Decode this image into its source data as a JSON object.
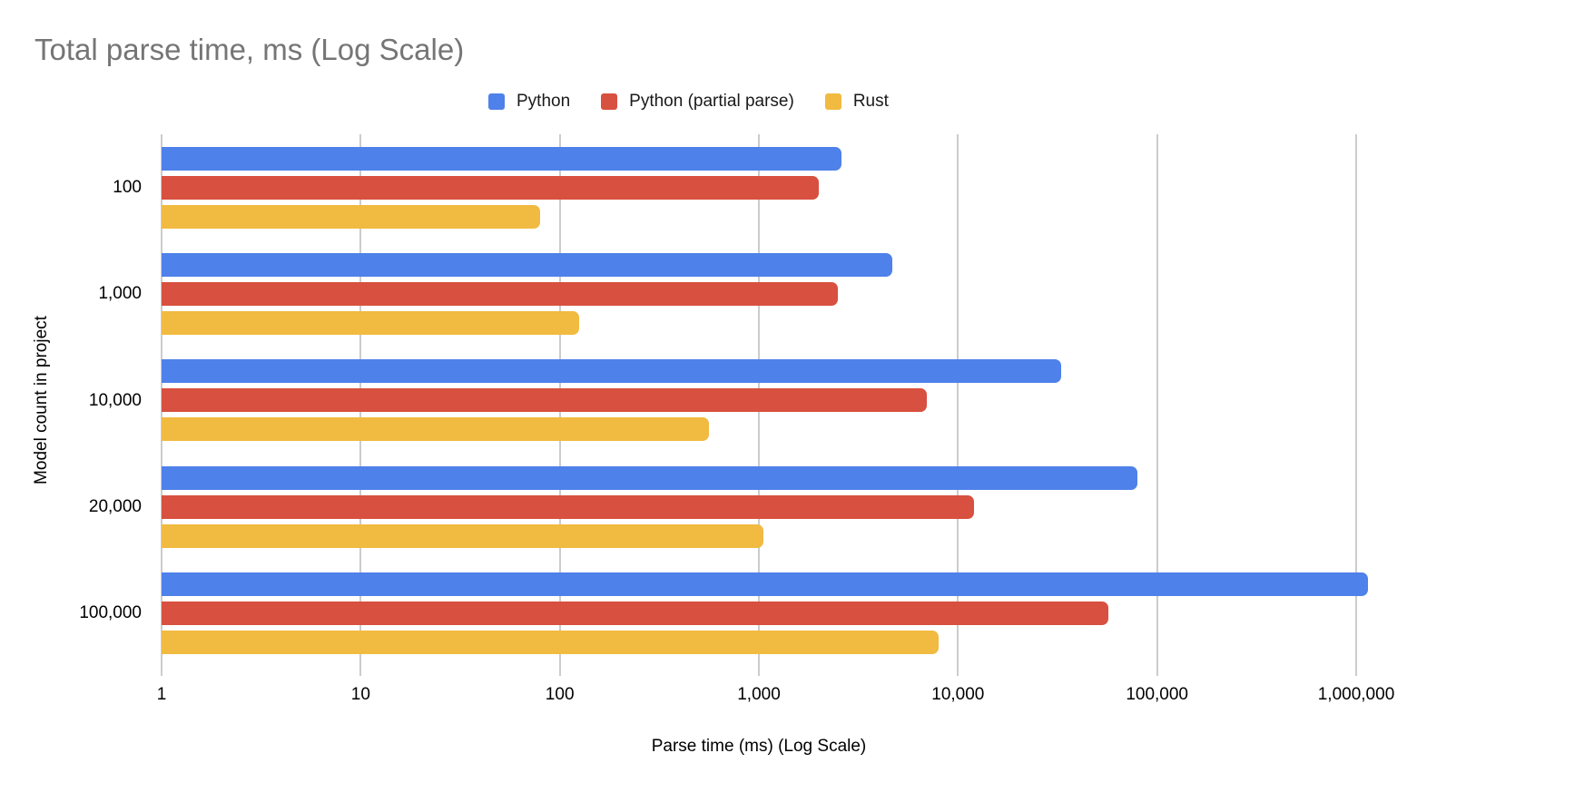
{
  "chart_data": {
    "type": "bar",
    "orientation": "horizontal",
    "title": "Total parse time, ms (Log Scale)",
    "xlabel": "Parse time (ms) (Log Scale)",
    "ylabel": "Model count in project",
    "x_scale": "log10",
    "xlim": [
      1,
      1000000
    ],
    "x_ticks": [
      {
        "label": "1",
        "value": 1
      },
      {
        "label": "10",
        "value": 10
      },
      {
        "label": "100",
        "value": 100
      },
      {
        "label": "1,000",
        "value": 1000
      },
      {
        "label": "10,000",
        "value": 10000
      },
      {
        "label": "100,000",
        "value": 100000
      },
      {
        "label": "1,000,000",
        "value": 1000000
      }
    ],
    "grid": "vertical",
    "legend_position": "top",
    "categories": [
      "100",
      "1,000",
      "10,000",
      "20,000",
      "100,000"
    ],
    "series": [
      {
        "name": "Python",
        "color": "#4e81e9",
        "values": [
          2600,
          4700,
          33000,
          80000,
          1150000
        ]
      },
      {
        "name": "Python (partial parse)",
        "color": "#d8503f",
        "values": [
          2000,
          2500,
          7000,
          12000,
          57000
        ]
      },
      {
        "name": "Rust",
        "color": "#f1ba40",
        "values": [
          80,
          125,
          560,
          1050,
          8000
        ]
      }
    ],
    "colors": {
      "title_text": "#757575",
      "axis_text": "#000000",
      "gridline": "#cccccc",
      "background": "#ffffff"
    }
  }
}
